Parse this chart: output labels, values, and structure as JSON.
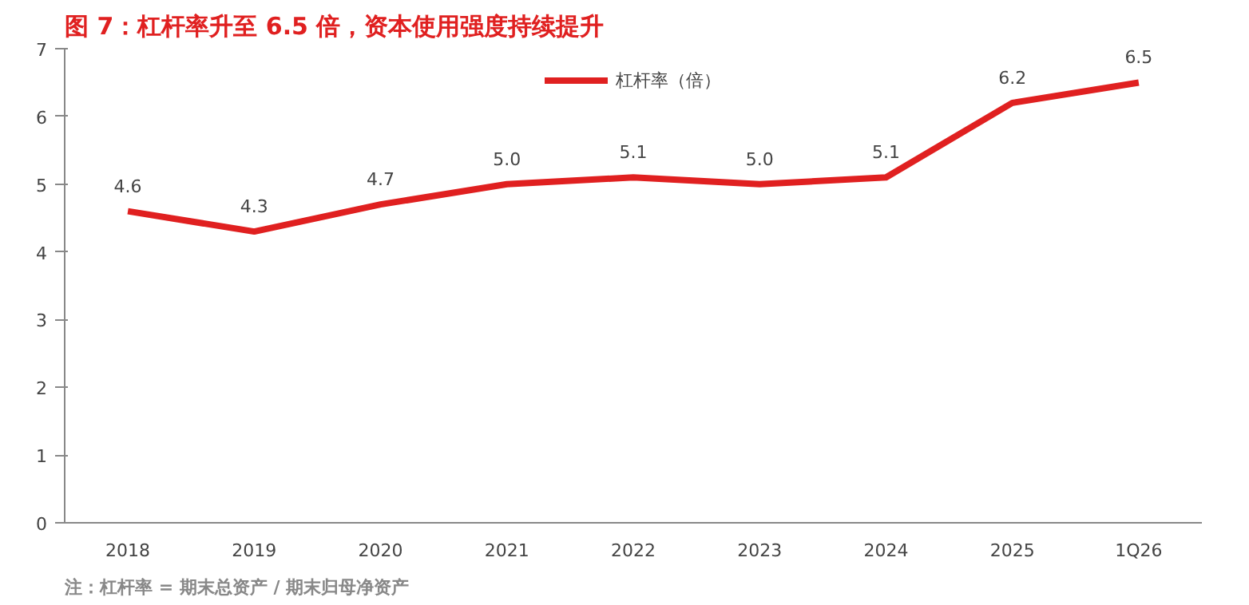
{
  "chart_data": {
    "type": "line",
    "title": "图 7：杠杆率升至 6.5 倍，资本使用强度持续提升",
    "categories": [
      "2018",
      "2019",
      "2020",
      "2021",
      "2022",
      "2023",
      "2024",
      "2025",
      "1Q26"
    ],
    "series": [
      {
        "name": "杠杆率（倍）",
        "color": "#e02020",
        "values": [
          4.6,
          4.3,
          4.7,
          5.0,
          5.1,
          5.0,
          5.1,
          6.2,
          6.5
        ],
        "value_labels": [
          "4.6",
          "4.3",
          "4.7",
          "5.0",
          "5.1",
          "5.0",
          "5.1",
          "6.2",
          "6.5"
        ]
      }
    ],
    "ylim": [
      0,
      7
    ],
    "yticks": [
      0,
      1,
      2,
      3,
      4,
      5,
      6,
      7
    ],
    "grid": false,
    "legend": "top",
    "marker": "none",
    "line_style": "solid",
    "annotations": [
      "注：杠杆率 = 期末总资产 / 期末归母净资产"
    ]
  }
}
